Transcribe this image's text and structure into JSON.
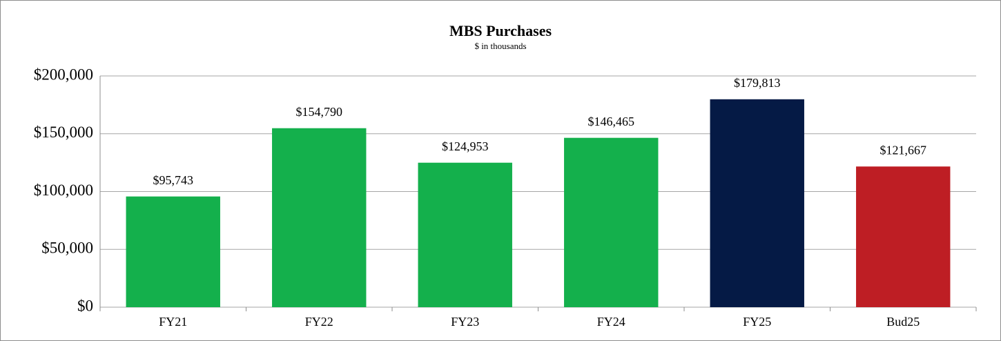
{
  "chart_data": {
    "type": "bar",
    "title": "MBS Purchases",
    "subtitle": "$ in thousands",
    "categories": [
      "FY21",
      "FY22",
      "FY23",
      "FY24",
      "FY25",
      "Bud25"
    ],
    "values": [
      95743,
      154790,
      124953,
      146465,
      179813,
      121667
    ],
    "value_labels": [
      "$95,743",
      "$154,790",
      "$124,953",
      "$146,465",
      "$179,813",
      "$121,667"
    ],
    "colors": [
      "#14b04c",
      "#14b04c",
      "#14b04c",
      "#14b04c",
      "#051a45",
      "#be1e24"
    ],
    "ylim": [
      0,
      200000
    ],
    "yticks": [
      {
        "value": 0,
        "label": "$0"
      },
      {
        "value": 50000,
        "label": "$50,000"
      },
      {
        "value": 100000,
        "label": "$100,000"
      },
      {
        "value": 150000,
        "label": "$150,000"
      },
      {
        "value": 200000,
        "label": "$200,000"
      }
    ],
    "grid": true
  }
}
